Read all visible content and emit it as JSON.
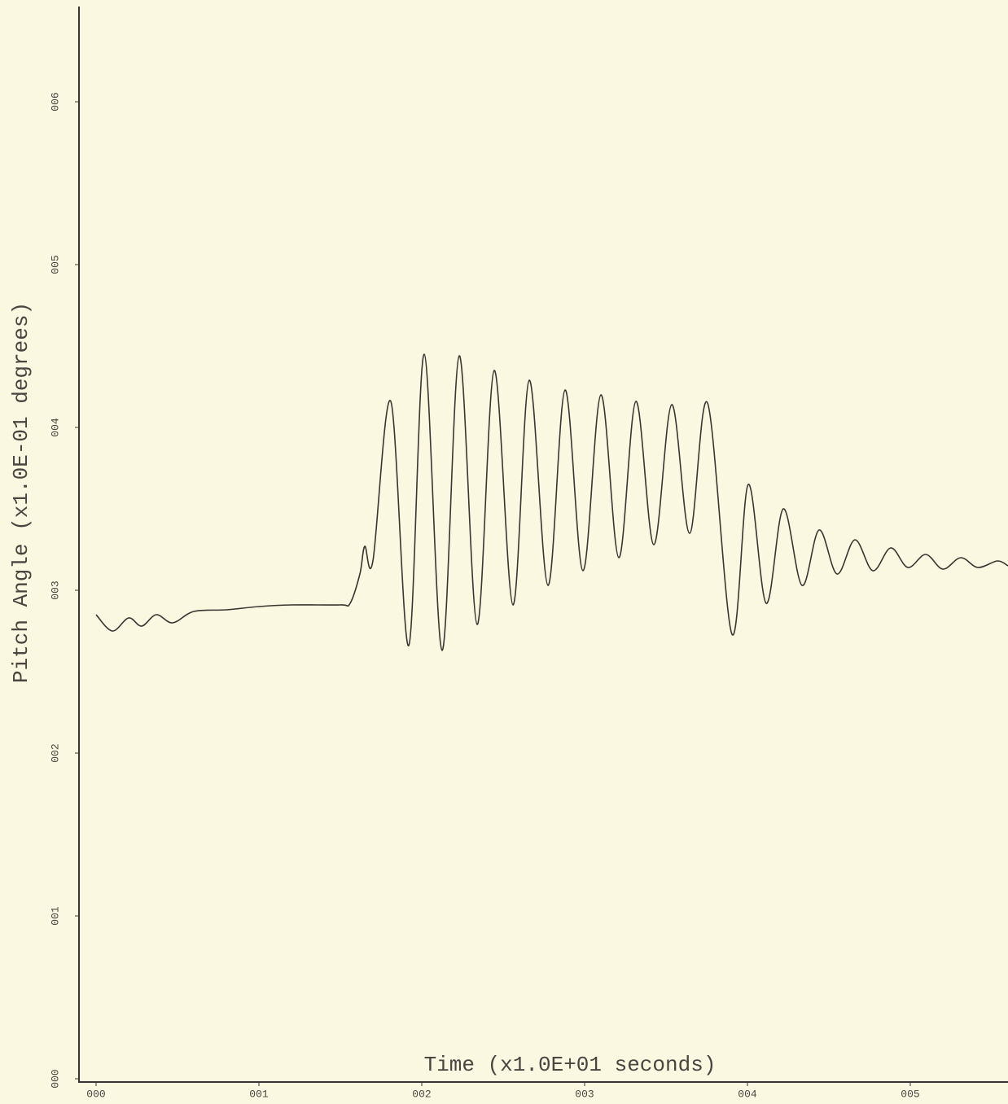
{
  "chart_data": {
    "type": "line",
    "x_label": "Time (x1.0E+01 seconds)",
    "y_label": "Pitch Angle (x1.0E-01 degrees)",
    "x": [
      0,
      0.1,
      0.2,
      0.28,
      0.37,
      0.47,
      0.6,
      0.8,
      1.0,
      1.2,
      1.5,
      1.56,
      1.62,
      1.65,
      1.7,
      1.81,
      1.92,
      2.015,
      2.125,
      2.23,
      2.34,
      2.445,
      2.56,
      2.66,
      2.775,
      2.88,
      2.99,
      3.1,
      3.21,
      3.315,
      3.425,
      3.535,
      3.645,
      3.755,
      3.905,
      4.005,
      4.115,
      4.22,
      4.335,
      4.44,
      4.55,
      4.66,
      4.77,
      4.88,
      4.985,
      5.095,
      5.2,
      5.31,
      5.415,
      5.535,
      5.6
    ],
    "series": [
      {
        "name": "Pitch Angle",
        "color": "#3a3530",
        "values": [
          2.85,
          2.75,
          2.83,
          2.78,
          2.85,
          2.8,
          2.87,
          2.88,
          2.9,
          2.91,
          2.91,
          2.92,
          3.1,
          3.27,
          3.18,
          4.16,
          2.66,
          4.45,
          2.63,
          4.44,
          2.79,
          4.35,
          2.91,
          4.29,
          3.03,
          4.23,
          3.12,
          4.2,
          3.2,
          4.16,
          3.28,
          4.14,
          3.35,
          4.15,
          2.73,
          3.65,
          2.92,
          3.5,
          3.03,
          3.37,
          3.1,
          3.31,
          3.12,
          3.26,
          3.14,
          3.22,
          3.13,
          3.2,
          3.14,
          3.18,
          3.15
        ]
      }
    ],
    "xlim": [
      0,
      5.6
    ],
    "ylim": [
      0,
      6.6
    ],
    "xticks": [
      {
        "value": 0,
        "label": "000"
      },
      {
        "value": 1,
        "label": "001"
      },
      {
        "value": 2,
        "label": "002"
      },
      {
        "value": 3,
        "label": "003"
      },
      {
        "value": 4,
        "label": "004"
      },
      {
        "value": 5,
        "label": "005"
      }
    ],
    "yticks": [
      {
        "value": 0,
        "label": "000"
      },
      {
        "value": 1,
        "label": "001"
      },
      {
        "value": 2,
        "label": "002"
      },
      {
        "value": 3,
        "label": "003"
      },
      {
        "value": 4,
        "label": "004"
      },
      {
        "value": 5,
        "label": "005"
      },
      {
        "value": 6,
        "label": "006"
      }
    ]
  }
}
